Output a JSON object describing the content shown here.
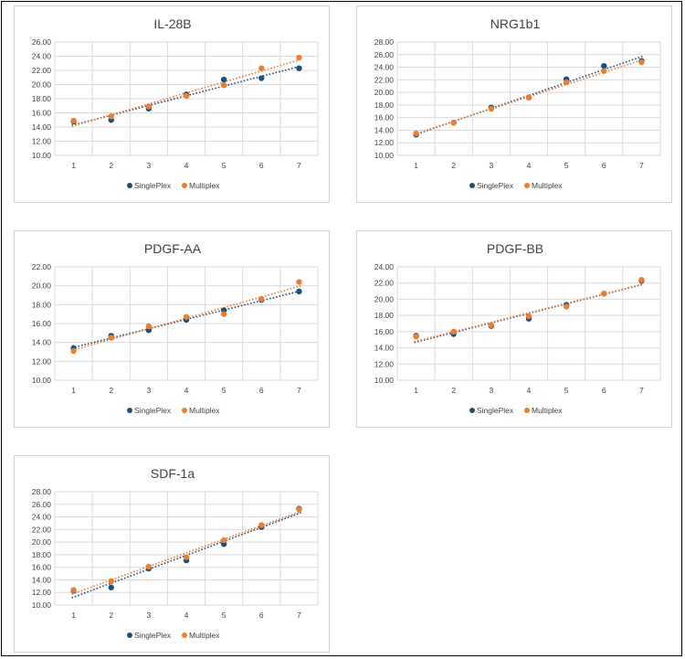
{
  "colors": {
    "single": "#1f4e79",
    "multi": "#ed7d31",
    "grid": "#d9d9d9",
    "axis": "#bfbfbf"
  },
  "legend": {
    "single": "SinglePlex",
    "multi": "Multiplex"
  },
  "chart_data": [
    {
      "type": "scatter",
      "title": "IL-28B",
      "x": [
        1,
        2,
        3,
        4,
        5,
        6,
        7
      ],
      "ylim": [
        10,
        26
      ],
      "ystep": 2,
      "series": [
        {
          "name": "SinglePlex",
          "values": [
            14.8,
            15.0,
            16.6,
            18.6,
            20.7,
            20.9,
            22.3
          ]
        },
        {
          "name": "Multiplex",
          "values": [
            14.9,
            15.5,
            16.9,
            18.4,
            19.9,
            22.3,
            23.8
          ]
        }
      ],
      "trendline": "linear",
      "legend_position": "bottom"
    },
    {
      "type": "scatter",
      "title": "NRG1b1",
      "x": [
        1,
        2,
        3,
        4,
        5,
        6,
        7
      ],
      "ylim": [
        10,
        28
      ],
      "ystep": 2,
      "series": [
        {
          "name": "SinglePlex",
          "values": [
            13.3,
            15.2,
            17.6,
            19.2,
            22.1,
            24.2,
            25.0
          ]
        },
        {
          "name": "Multiplex",
          "values": [
            13.5,
            15.2,
            17.4,
            19.2,
            21.6,
            23.4,
            24.8
          ]
        }
      ],
      "trendline": "linear",
      "legend_position": "bottom"
    },
    {
      "type": "scatter",
      "title": "PDGF-AA",
      "x": [
        1,
        2,
        3,
        4,
        5,
        6,
        7
      ],
      "ylim": [
        10,
        22
      ],
      "ystep": 2,
      "series": [
        {
          "name": "SinglePlex",
          "values": [
            13.4,
            14.7,
            15.3,
            16.4,
            17.4,
            18.5,
            19.4
          ]
        },
        {
          "name": "Multiplex",
          "values": [
            13.1,
            14.5,
            15.7,
            16.7,
            17.0,
            18.6,
            20.4
          ]
        }
      ],
      "trendline": "linear",
      "legend_position": "bottom"
    },
    {
      "type": "scatter",
      "title": "PDGF-BB",
      "x": [
        1,
        2,
        3,
        4,
        5,
        6,
        7
      ],
      "ylim": [
        10,
        24
      ],
      "ystep": 2,
      "series": [
        {
          "name": "SinglePlex",
          "values": [
            15.5,
            15.7,
            16.7,
            17.6,
            19.3,
            20.7,
            22.3
          ]
        },
        {
          "name": "Multiplex",
          "values": [
            15.4,
            16.0,
            16.8,
            17.9,
            19.1,
            20.7,
            22.4
          ]
        }
      ],
      "trendline": "linear",
      "legend_position": "bottom"
    },
    {
      "type": "scatter",
      "title": "SDF-1a",
      "x": [
        1,
        2,
        3,
        4,
        5,
        6,
        7
      ],
      "ylim": [
        10,
        28
      ],
      "ystep": 2,
      "series": [
        {
          "name": "SinglePlex",
          "values": [
            12.3,
            12.8,
            15.8,
            17.1,
            19.7,
            22.4,
            25.3
          ]
        },
        {
          "name": "Multiplex",
          "values": [
            12.4,
            13.8,
            16.1,
            17.6,
            20.3,
            22.7,
            25.2
          ]
        }
      ],
      "trendline": "linear",
      "legend_position": "bottom"
    }
  ]
}
